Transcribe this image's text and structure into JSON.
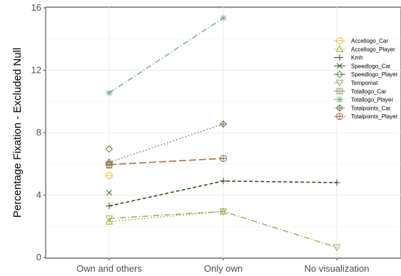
{
  "chart_data": {
    "type": "line",
    "title": "",
    "xlabel": "",
    "ylabel": "Percentage Fixation - Excluded Null",
    "categories": [
      "Own and others",
      "Only own",
      "No visualization"
    ],
    "ylim": [
      0,
      16
    ],
    "yticks": [
      0,
      4,
      8,
      12,
      16
    ],
    "grid": true,
    "legend_position": "right",
    "series": [
      {
        "name": "Accellogo_Car",
        "values": [
          5.25,
          null,
          null
        ],
        "color": "#e8c229",
        "marker": "circle-bar",
        "dash": "solid"
      },
      {
        "name": "Accellogo_Player",
        "values": [
          2.3,
          2.95,
          null
        ],
        "color": "#a3a31c",
        "marker": "triangle",
        "dash": "dotted"
      },
      {
        "name": "Kmh",
        "values": [
          3.3,
          4.9,
          4.8
        ],
        "color": "#1d4d10",
        "marker": "plus",
        "dash": "dashed"
      },
      {
        "name": "Speedlogo_Car",
        "values": [
          4.15,
          null,
          null
        ],
        "color": "#2d5a2d",
        "marker": "x",
        "dash": "solid"
      },
      {
        "name": "Speedlogo_Player",
        "values": [
          6.95,
          null,
          null
        ],
        "color": "#5a7a3a",
        "marker": "diamond",
        "dash": "solid"
      },
      {
        "name": "Tempomat",
        "values": [
          2.5,
          2.95,
          0.65
        ],
        "color": "#a0a860",
        "marker": "triangle-down",
        "dash": "dashdot"
      },
      {
        "name": "Totallogo_Car",
        "values": [
          5.9,
          null,
          null
        ],
        "color": "#8a9a6a",
        "marker": "square-cross",
        "dash": "solid"
      },
      {
        "name": "Totallogo_Player",
        "values": [
          10.55,
          15.35,
          null
        ],
        "color": "#7aaa8a",
        "marker": "asterisk",
        "dash": "dashdot"
      },
      {
        "name": "Totalpoints_Car",
        "values": [
          6.1,
          8.55,
          null
        ],
        "color": "#6b7a5a",
        "marker": "diamond-plus",
        "dash": "dotted"
      },
      {
        "name": "Totalpoints_Player",
        "values": [
          5.95,
          6.35,
          null
        ],
        "color": "#a06840",
        "marker": "circle-plus",
        "dash": "longdash"
      }
    ]
  }
}
